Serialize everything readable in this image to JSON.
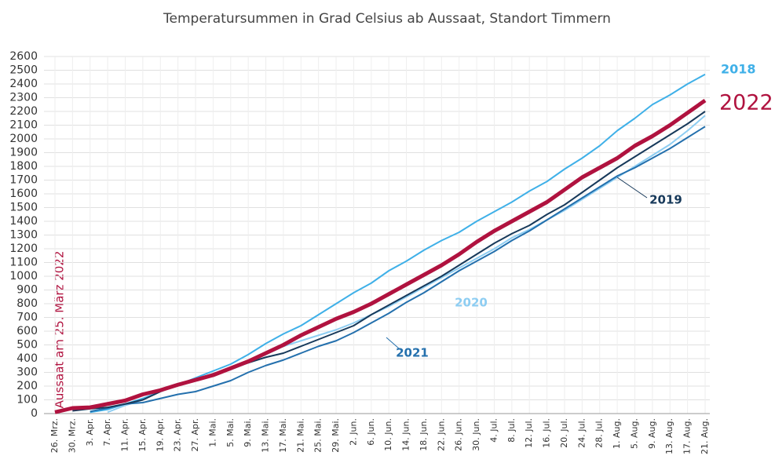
{
  "chart_data": {
    "type": "line",
    "title": "Temperatursummen in Grad Celsius ab Aussaat, Standort Timmern",
    "annotation": "Aussaat am 25. März 2022",
    "categories": [
      "26. Mrz.",
      "30. Mrz.",
      "3. Apr.",
      "7. Apr.",
      "11. Apr.",
      "15. Apr.",
      "19. Apr.",
      "23. Apr.",
      "27. Apr.",
      "1. Mai.",
      "5. Mai.",
      "9. Mai.",
      "13. Mai.",
      "17. Mai.",
      "21. Mai.",
      "25. Mai.",
      "29. Mai.",
      "2. Jun.",
      "6. Jun.",
      "10. Jun.",
      "14. Jun.",
      "18. Jun.",
      "22. Jun.",
      "26. Jun.",
      "30. Jun.",
      "4. Jul.",
      "8. Jul.",
      "12. Jul.",
      "16. Jul.",
      "20. Jul.",
      "24. Jul.",
      "28. Jul.",
      "1. Aug.",
      "5. Aug.",
      "9. Aug.",
      "13. Aug.",
      "17. Aug.",
      "21. Aug."
    ],
    "series": [
      {
        "name": "2018",
        "color": "#3fb0e8",
        "values": [
          null,
          null,
          10,
          30,
          70,
          110,
          160,
          210,
          260,
          310,
          360,
          430,
          510,
          580,
          640,
          720,
          800,
          880,
          950,
          1040,
          1110,
          1190,
          1260,
          1320,
          1400,
          1470,
          1540,
          1620,
          1690,
          1780,
          1860,
          1950,
          2060,
          2150,
          2250,
          2320,
          2400,
          2470
        ]
      },
      {
        "name": "2020",
        "color": "#8dcdf2",
        "values": [
          null,
          null,
          null,
          10,
          60,
          100,
          160,
          210,
          240,
          280,
          320,
          370,
          430,
          490,
          530,
          570,
          610,
          660,
          720,
          780,
          850,
          920,
          990,
          1060,
          1130,
          1200,
          1280,
          1340,
          1410,
          1480,
          1560,
          1640,
          1720,
          1800,
          1880,
          1960,
          2060,
          2170
        ]
      },
      {
        "name": "2021",
        "color": "#2470ad",
        "values": [
          null,
          null,
          15,
          40,
          70,
          80,
          110,
          140,
          160,
          200,
          240,
          300,
          350,
          390,
          440,
          490,
          530,
          590,
          660,
          730,
          810,
          880,
          960,
          1040,
          1110,
          1180,
          1260,
          1330,
          1410,
          1490,
          1570,
          1650,
          1730,
          1790,
          1860,
          1930,
          2010,
          2090
        ]
      },
      {
        "name": "2019",
        "color": "#17395a",
        "values": [
          null,
          20,
          35,
          45,
          70,
          100,
          160,
          210,
          250,
          290,
          330,
          370,
          410,
          440,
          490,
          540,
          590,
          640,
          720,
          790,
          860,
          930,
          1000,
          1080,
          1160,
          1240,
          1310,
          1370,
          1450,
          1520,
          1610,
          1700,
          1790,
          1870,
          1950,
          2030,
          2110,
          2200
        ]
      },
      {
        "name": "2022",
        "color": "#b0123f",
        "values": [
          10,
          40,
          45,
          70,
          95,
          140,
          170,
          210,
          245,
          280,
          330,
          380,
          440,
          500,
          570,
          630,
          690,
          740,
          800,
          870,
          940,
          1010,
          1080,
          1160,
          1250,
          1330,
          1400,
          1470,
          1540,
          1630,
          1720,
          1790,
          1860,
          1950,
          2020,
          2100,
          2190,
          2280
        ]
      }
    ],
    "ylim": [
      0,
      2600
    ],
    "yticks": [
      0,
      100,
      200,
      300,
      400,
      500,
      600,
      700,
      800,
      900,
      1000,
      1100,
      1200,
      1300,
      1400,
      1500,
      1600,
      1700,
      1800,
      1900,
      2000,
      2100,
      2200,
      2300,
      2400,
      2500,
      2600
    ],
    "grid": true
  }
}
